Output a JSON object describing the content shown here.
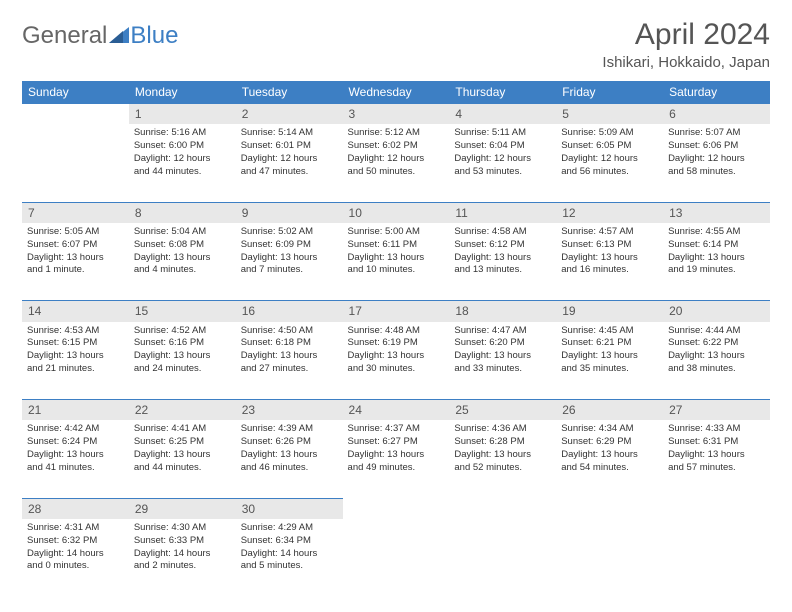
{
  "brand": {
    "part1": "General",
    "part2": "Blue"
  },
  "title": "April 2024",
  "location": "Ishikari, Hokkaido, Japan",
  "colors": {
    "header_bg": "#3d7fc4",
    "header_text": "#ffffff",
    "daynum_bg": "#e8e8e8",
    "text": "#333333",
    "page_bg": "#ffffff",
    "divider": "#3d7fc4"
  },
  "fonts": {
    "title_size": 30,
    "location_size": 15,
    "th_size": 12,
    "cell_size": 9.5,
    "daynum_size": 12
  },
  "weekdays": [
    "Sunday",
    "Monday",
    "Tuesday",
    "Wednesday",
    "Thursday",
    "Friday",
    "Saturday"
  ],
  "weeks": [
    {
      "nums": [
        "",
        "1",
        "2",
        "3",
        "4",
        "5",
        "6"
      ],
      "cells": [
        [],
        [
          "Sunrise: 5:16 AM",
          "Sunset: 6:00 PM",
          "Daylight: 12 hours",
          "and 44 minutes."
        ],
        [
          "Sunrise: 5:14 AM",
          "Sunset: 6:01 PM",
          "Daylight: 12 hours",
          "and 47 minutes."
        ],
        [
          "Sunrise: 5:12 AM",
          "Sunset: 6:02 PM",
          "Daylight: 12 hours",
          "and 50 minutes."
        ],
        [
          "Sunrise: 5:11 AM",
          "Sunset: 6:04 PM",
          "Daylight: 12 hours",
          "and 53 minutes."
        ],
        [
          "Sunrise: 5:09 AM",
          "Sunset: 6:05 PM",
          "Daylight: 12 hours",
          "and 56 minutes."
        ],
        [
          "Sunrise: 5:07 AM",
          "Sunset: 6:06 PM",
          "Daylight: 12 hours",
          "and 58 minutes."
        ]
      ]
    },
    {
      "nums": [
        "7",
        "8",
        "9",
        "10",
        "11",
        "12",
        "13"
      ],
      "cells": [
        [
          "Sunrise: 5:05 AM",
          "Sunset: 6:07 PM",
          "Daylight: 13 hours",
          "and 1 minute."
        ],
        [
          "Sunrise: 5:04 AM",
          "Sunset: 6:08 PM",
          "Daylight: 13 hours",
          "and 4 minutes."
        ],
        [
          "Sunrise: 5:02 AM",
          "Sunset: 6:09 PM",
          "Daylight: 13 hours",
          "and 7 minutes."
        ],
        [
          "Sunrise: 5:00 AM",
          "Sunset: 6:11 PM",
          "Daylight: 13 hours",
          "and 10 minutes."
        ],
        [
          "Sunrise: 4:58 AM",
          "Sunset: 6:12 PM",
          "Daylight: 13 hours",
          "and 13 minutes."
        ],
        [
          "Sunrise: 4:57 AM",
          "Sunset: 6:13 PM",
          "Daylight: 13 hours",
          "and 16 minutes."
        ],
        [
          "Sunrise: 4:55 AM",
          "Sunset: 6:14 PM",
          "Daylight: 13 hours",
          "and 19 minutes."
        ]
      ]
    },
    {
      "nums": [
        "14",
        "15",
        "16",
        "17",
        "18",
        "19",
        "20"
      ],
      "cells": [
        [
          "Sunrise: 4:53 AM",
          "Sunset: 6:15 PM",
          "Daylight: 13 hours",
          "and 21 minutes."
        ],
        [
          "Sunrise: 4:52 AM",
          "Sunset: 6:16 PM",
          "Daylight: 13 hours",
          "and 24 minutes."
        ],
        [
          "Sunrise: 4:50 AM",
          "Sunset: 6:18 PM",
          "Daylight: 13 hours",
          "and 27 minutes."
        ],
        [
          "Sunrise: 4:48 AM",
          "Sunset: 6:19 PM",
          "Daylight: 13 hours",
          "and 30 minutes."
        ],
        [
          "Sunrise: 4:47 AM",
          "Sunset: 6:20 PM",
          "Daylight: 13 hours",
          "and 33 minutes."
        ],
        [
          "Sunrise: 4:45 AM",
          "Sunset: 6:21 PM",
          "Daylight: 13 hours",
          "and 35 minutes."
        ],
        [
          "Sunrise: 4:44 AM",
          "Sunset: 6:22 PM",
          "Daylight: 13 hours",
          "and 38 minutes."
        ]
      ]
    },
    {
      "nums": [
        "21",
        "22",
        "23",
        "24",
        "25",
        "26",
        "27"
      ],
      "cells": [
        [
          "Sunrise: 4:42 AM",
          "Sunset: 6:24 PM",
          "Daylight: 13 hours",
          "and 41 minutes."
        ],
        [
          "Sunrise: 4:41 AM",
          "Sunset: 6:25 PM",
          "Daylight: 13 hours",
          "and 44 minutes."
        ],
        [
          "Sunrise: 4:39 AM",
          "Sunset: 6:26 PM",
          "Daylight: 13 hours",
          "and 46 minutes."
        ],
        [
          "Sunrise: 4:37 AM",
          "Sunset: 6:27 PM",
          "Daylight: 13 hours",
          "and 49 minutes."
        ],
        [
          "Sunrise: 4:36 AM",
          "Sunset: 6:28 PM",
          "Daylight: 13 hours",
          "and 52 minutes."
        ],
        [
          "Sunrise: 4:34 AM",
          "Sunset: 6:29 PM",
          "Daylight: 13 hours",
          "and 54 minutes."
        ],
        [
          "Sunrise: 4:33 AM",
          "Sunset: 6:31 PM",
          "Daylight: 13 hours",
          "and 57 minutes."
        ]
      ]
    },
    {
      "nums": [
        "28",
        "29",
        "30",
        "",
        "",
        "",
        ""
      ],
      "cells": [
        [
          "Sunrise: 4:31 AM",
          "Sunset: 6:32 PM",
          "Daylight: 14 hours",
          "and 0 minutes."
        ],
        [
          "Sunrise: 4:30 AM",
          "Sunset: 6:33 PM",
          "Daylight: 14 hours",
          "and 2 minutes."
        ],
        [
          "Sunrise: 4:29 AM",
          "Sunset: 6:34 PM",
          "Daylight: 14 hours",
          "and 5 minutes."
        ],
        [],
        [],
        [],
        []
      ]
    }
  ]
}
